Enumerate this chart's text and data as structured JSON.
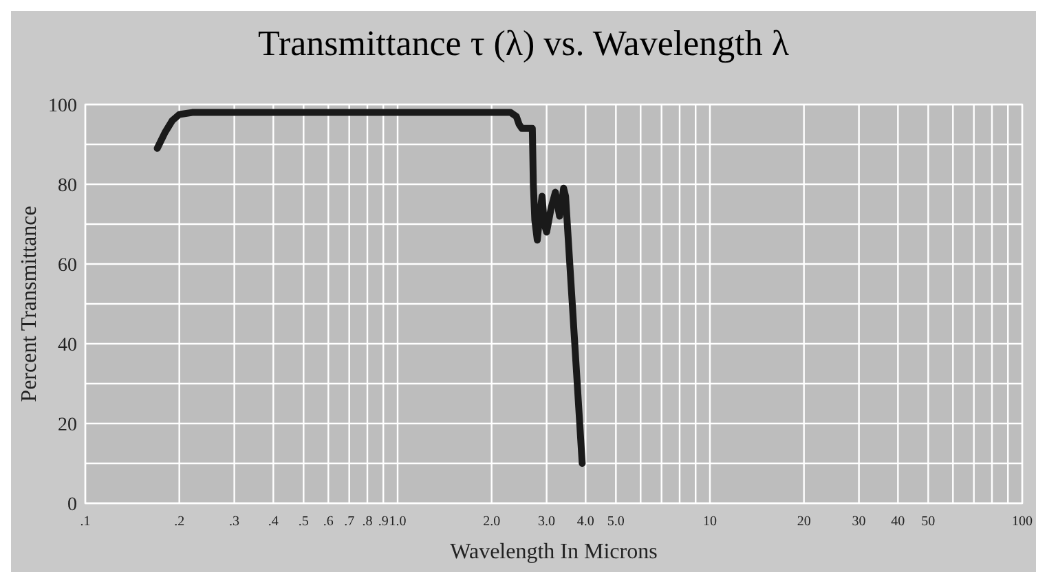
{
  "chart_data": {
    "type": "line",
    "title": "Transmittance τ (λ)  vs. Wavelength λ",
    "xlabel": "Wavelength In Microns",
    "ylabel": "Percent Transmittance",
    "log": "x",
    "grid": true,
    "marker": "none",
    "line_style": "solid",
    "xlim": [
      0.1,
      100
    ],
    "ylim": [
      0,
      100
    ],
    "xticks": [
      {
        "value": 0.1,
        "label": ".1"
      },
      {
        "value": 0.2,
        "label": ".2"
      },
      {
        "value": 0.3,
        "label": ".3"
      },
      {
        "value": 0.4,
        "label": ".4"
      },
      {
        "value": 0.5,
        "label": ".5"
      },
      {
        "value": 0.6,
        "label": ".6"
      },
      {
        "value": 0.7,
        "label": ".7"
      },
      {
        "value": 0.8,
        "label": ".8"
      },
      {
        "value": 0.9,
        "label": ".9"
      },
      {
        "value": 1,
        "label": "1.0"
      },
      {
        "value": 2,
        "label": "2.0"
      },
      {
        "value": 3,
        "label": "3.0"
      },
      {
        "value": 4,
        "label": "4.0"
      },
      {
        "value": 5,
        "label": "5.0"
      },
      {
        "value": 6,
        "label": null
      },
      {
        "value": 7,
        "label": null
      },
      {
        "value": 8,
        "label": null
      },
      {
        "value": 9,
        "label": null
      },
      10,
      20,
      30,
      40,
      50,
      {
        "value": 60,
        "label": null
      },
      {
        "value": 70,
        "label": null
      },
      {
        "value": 80,
        "label": null
      },
      {
        "value": 90,
        "label": null
      },
      100
    ],
    "yticks": [
      0,
      {
        "value": 10,
        "label": null
      },
      20,
      {
        "value": 30,
        "label": null
      },
      40,
      {
        "value": 50,
        "label": null
      },
      60,
      {
        "value": 70,
        "label": null
      },
      80,
      {
        "value": 90,
        "label": null
      },
      100
    ],
    "series": [
      {
        "color": "#1a1a1a",
        "x": [
          0.17,
          0.18,
          0.19,
          0.2,
          0.22,
          1,
          2,
          2.3,
          2.4,
          2.45,
          2.5,
          2.7,
          2.72,
          2.75,
          2.8,
          2.85,
          2.9,
          2.95,
          3.0,
          3.1,
          3.2,
          3.3,
          3.35,
          3.4,
          3.45,
          3.9
        ],
        "values": [
          89,
          93,
          96,
          97.5,
          98,
          98,
          98,
          98,
          97,
          95,
          94,
          94,
          80,
          71,
          66,
          72,
          77,
          70,
          68,
          74,
          78,
          72,
          75,
          79,
          77,
          10
        ]
      }
    ]
  }
}
